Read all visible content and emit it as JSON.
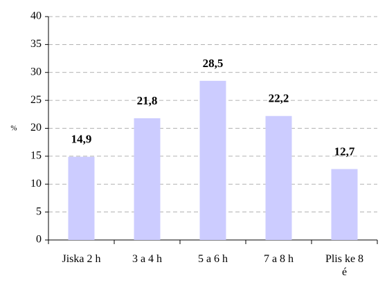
{
  "chart_data": {
    "type": "bar",
    "y_label": "%",
    "categories": [
      "Jiska 2 h",
      "3 a 4 h",
      "5 a 6 h",
      "7 a 8 h",
      "Plis ke 8 é"
    ],
    "values": [
      14.9,
      21.8,
      28.5,
      22.2,
      12.7
    ],
    "value_labels": [
      "14,9",
      "21,8",
      "28,5",
      "22,2",
      "12,7"
    ],
    "color": "#ccccff",
    "ylim": [
      0,
      40
    ],
    "yticks": [
      0,
      5,
      10,
      15,
      20,
      25,
      30,
      35,
      40
    ],
    "grid": true
  }
}
